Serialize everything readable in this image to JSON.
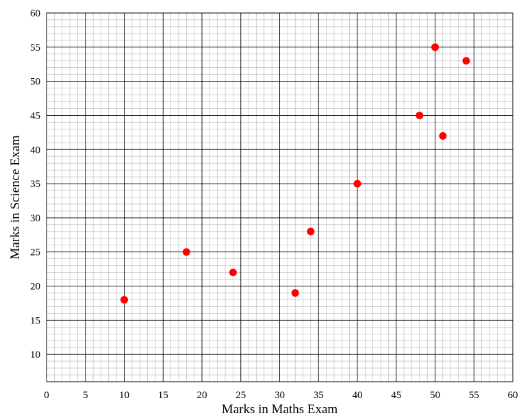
{
  "chart_data": {
    "type": "scatter",
    "title": "",
    "xlabel": "Marks in Maths Exam",
    "ylabel": "Marks in Science Exam",
    "xlim": [
      0,
      60
    ],
    "ylim": [
      6,
      60
    ],
    "x_ticks": [
      0,
      5,
      10,
      15,
      20,
      25,
      30,
      35,
      40,
      45,
      50,
      55,
      60
    ],
    "y_ticks": [
      10,
      15,
      20,
      25,
      30,
      35,
      40,
      45,
      50,
      55,
      60
    ],
    "grid": true,
    "minor_grid_step": 1,
    "major_grid_step": 5,
    "marker_color": "#ff0000",
    "points": [
      {
        "x": 10,
        "y": 18
      },
      {
        "x": 18,
        "y": 25
      },
      {
        "x": 24,
        "y": 22
      },
      {
        "x": 32,
        "y": 19
      },
      {
        "x": 34,
        "y": 28
      },
      {
        "x": 40,
        "y": 35
      },
      {
        "x": 48,
        "y": 45
      },
      {
        "x": 50,
        "y": 55
      },
      {
        "x": 51,
        "y": 42
      },
      {
        "x": 54,
        "y": 53
      }
    ]
  }
}
